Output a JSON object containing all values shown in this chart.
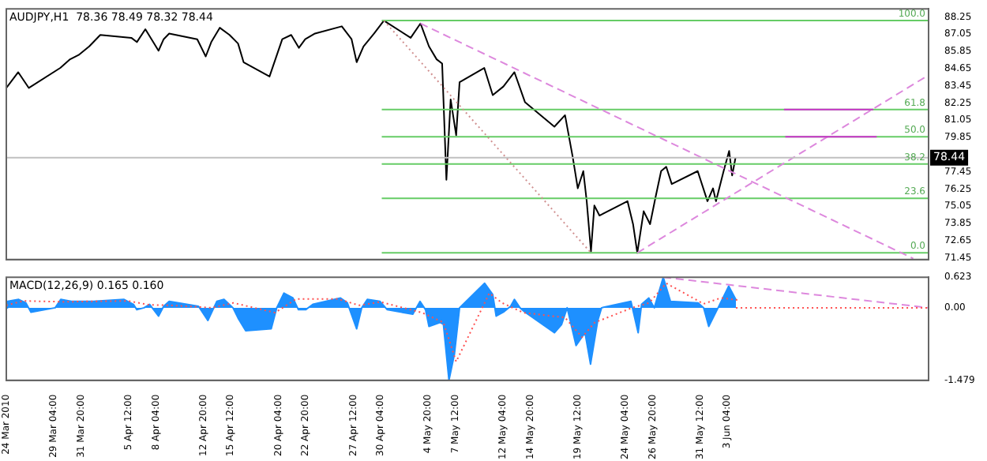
{
  "chart_data": [
    {
      "type": "line",
      "title": "AUDJPY,H1  78.36 78.49 78.32 78.44",
      "xlim": [
        "2010-03-24T12:00",
        "2010-06-22T21:00"
      ],
      "ylim": [
        71.33,
        88.82
      ],
      "tick_labels": "y",
      "marker": "none",
      "legend": false,
      "grid": false,
      "yticks": [
        88.25,
        87.05,
        85.85,
        84.65,
        83.45,
        82.25,
        81.05,
        79.85,
        77.45,
        76.25,
        75.05,
        73.85,
        72.65,
        71.45
      ],
      "series": [
        {
          "color": "#000000",
          "x": [
            "2010-03-24T12:00",
            "2010-03-25T16:00",
            "2010-03-26T17:00",
            "2010-03-29T19:00",
            "2010-03-30T18:00",
            "2010-03-31T14:00",
            "2010-04-01T15:00",
            "2010-04-02T17:00",
            "2010-04-05T18:00",
            "2010-04-06T07:00",
            "2010-04-07T03:00",
            "2010-04-08T10:00",
            "2010-04-08T22:00",
            "2010-04-09T11:00",
            "2010-04-12T05:00",
            "2010-04-13T01:00",
            "2010-04-13T14:00",
            "2010-04-14T10:00",
            "2010-04-15T09:00",
            "2010-04-16T05:00",
            "2010-04-16T18:00",
            "2010-04-19T07:00",
            "2010-04-20T13:00",
            "2010-04-21T10:00",
            "2010-04-22T04:00",
            "2010-04-22T19:00",
            "2010-04-23T18:00",
            "2010-04-26T09:00",
            "2010-04-27T08:00",
            "2010-04-27T20:00",
            "2010-04-28T12:00",
            "2010-04-29T13:00",
            "2010-04-30T12:00",
            "2010-05-03T03:00",
            "2010-05-04T02:00",
            "2010-05-04T22:00",
            "2010-05-05T16:00",
            "2010-05-06T05:00",
            "2010-05-06T15:00",
            "2010-05-07T01:00",
            "2010-05-07T14:00",
            "2010-05-07T22:00",
            "2010-05-10T08:00",
            "2010-05-11T04:00",
            "2010-05-12T05:00",
            "2010-05-13T07:00",
            "2010-05-14T08:00",
            "2010-05-17T05:00",
            "2010-05-18T06:00",
            "2010-05-19T00:00",
            "2010-05-19T12:00",
            "2010-05-20T01:00",
            "2010-05-20T09:00",
            "2010-05-20T19:00",
            "2010-05-21T03:00",
            "2010-05-21T15:00",
            "2010-05-24T09:00",
            "2010-05-24T22:00",
            "2010-05-25T08:00",
            "2010-05-25T23:00",
            "2010-05-26T14:00",
            "2010-05-27T03:00",
            "2010-05-27T16:00",
            "2010-05-28T04:00",
            "2010-05-28T17:00",
            "2010-05-31T06:00",
            "2010-06-01T05:00",
            "2010-06-01T18:00",
            "2010-06-02T01:00",
            "2010-06-02T19:00",
            "2010-06-03T08:00",
            "2010-06-03T15:00",
            "2010-06-03T23:00"
          ],
          "values": [
            83.3,
            84.4,
            83.3,
            84.7,
            85.3,
            85.6,
            86.2,
            87.0,
            86.8,
            86.5,
            87.4,
            85.9,
            86.7,
            87.1,
            86.7,
            85.5,
            86.5,
            87.5,
            87.0,
            86.4,
            85.1,
            84.1,
            86.7,
            87.0,
            86.1,
            86.7,
            87.1,
            87.6,
            86.7,
            85.1,
            86.2,
            87.1,
            88.0,
            86.8,
            87.8,
            86.2,
            85.3,
            85.0,
            76.9,
            82.5,
            80.0,
            83.7,
            84.7,
            82.8,
            83.4,
            84.4,
            82.3,
            80.6,
            81.4,
            78.5,
            76.3,
            77.5,
            75.4,
            71.9,
            75.1,
            74.4,
            75.4,
            73.8,
            71.8,
            74.7,
            73.8,
            75.7,
            77.5,
            77.8,
            76.6,
            77.5,
            75.4,
            76.3,
            75.4,
            77.5,
            78.9,
            77.2,
            78.44
          ]
        },
        {
          "color": "#66cc66",
          "x": [
            "2010-04-30T07:00",
            "2010-06-22T21:00"
          ],
          "values": [
            88.0,
            88.0
          ]
        },
        {
          "color": "#66cc66",
          "x": [
            "2010-04-30T07:00",
            "2010-06-22T21:00"
          ],
          "values": [
            81.8,
            81.8
          ]
        },
        {
          "color": "#66cc66",
          "x": [
            "2010-04-30T07:00",
            "2010-06-22T21:00"
          ],
          "values": [
            79.9,
            79.9
          ]
        },
        {
          "color": "#66cc66",
          "x": [
            "2010-04-30T07:00",
            "2010-06-22T21:00"
          ],
          "values": [
            78.0,
            78.0
          ]
        },
        {
          "color": "#66cc66",
          "x": [
            "2010-04-30T07:00",
            "2010-06-22T21:00"
          ],
          "values": [
            75.6,
            75.6
          ]
        },
        {
          "color": "#66cc66",
          "x": [
            "2010-04-30T07:00",
            "2010-06-22T21:00"
          ],
          "values": [
            71.8,
            71.8
          ]
        },
        {
          "color": "#dd88dd",
          "line_style": "dashed",
          "x": [
            "2010-05-04T02:00",
            "2010-06-21T09:00"
          ],
          "values": [
            87.8,
            71.4
          ]
        },
        {
          "color": "#d09090",
          "line_style": "dotted",
          "x": [
            "2010-04-30T12:00",
            "2010-05-20T19:00"
          ],
          "values": [
            88.0,
            71.8
          ]
        },
        {
          "color": "#dd88dd",
          "line_style": "dashed",
          "x": [
            "2010-05-25T08:00",
            "2010-06-22T21:00"
          ],
          "values": [
            71.8,
            84.2
          ]
        },
        {
          "color": "#cc33cc",
          "x": [
            "2010-06-08T17:00",
            "2010-06-17T11:00"
          ],
          "values": [
            81.8,
            81.8
          ]
        },
        {
          "color": "#cc33cc",
          "x": [
            "2010-06-08T20:00",
            "2010-06-17T19:00"
          ],
          "values": [
            79.9,
            79.9
          ]
        }
      ],
      "ref_lines": [
        {
          "axis": "y",
          "value": 78.44,
          "label": "78.44",
          "color": "#c0c0c0"
        }
      ],
      "annotations": [
        {
          "text": "100.0",
          "x": "2010-06-22T21:00",
          "y": 88.0
        },
        {
          "text": "61.8",
          "x": "2010-06-22T21:00",
          "y": 81.8
        },
        {
          "text": "50.0",
          "x": "2010-06-22T21:00",
          "y": 79.9
        },
        {
          "text": "38.2",
          "x": "2010-06-22T21:00",
          "y": 78.0
        },
        {
          "text": "23.6",
          "x": "2010-06-22T21:00",
          "y": 75.6
        },
        {
          "text": "0.0",
          "x": "2010-06-22T21:00",
          "y": 71.8
        }
      ]
    },
    {
      "type": "area",
      "title": "MACD(12,26,9) 0.165 0.160",
      "xlim": [
        "2010-03-24T12:00",
        "2010-06-22T21:00"
      ],
      "ylim": [
        -1.479,
        0.623
      ],
      "marker": "none",
      "legend": false,
      "grid": false,
      "yticks": [
        0.623,
        {
          "value": 0,
          "label": "0.00"
        },
        -1.479
      ],
      "xticks": [
        {
          "value": "2010-03-24T12:00",
          "label": "24 Mar 2010"
        },
        {
          "value": "2010-03-29T04:00",
          "label": "29 Mar 04:00"
        },
        {
          "value": "2010-03-31T20:00",
          "label": "31 Mar 20:00"
        },
        {
          "value": "2010-04-05T12:00",
          "label": "5 Apr 12:00"
        },
        {
          "value": "2010-04-08T04:00",
          "label": "8 Apr 04:00"
        },
        {
          "value": "2010-04-12T20:00",
          "label": "12 Apr 20:00"
        },
        {
          "value": "2010-04-15T12:00",
          "label": "15 Apr 12:00"
        },
        {
          "value": "2010-04-20T04:00",
          "label": "20 Apr 04:00"
        },
        {
          "value": "2010-04-22T20:00",
          "label": "22 Apr 20:00"
        },
        {
          "value": "2010-04-27T12:00",
          "label": "27 Apr 12:00"
        },
        {
          "value": "2010-04-30T04:00",
          "label": "30 Apr 04:00"
        },
        {
          "value": "2010-05-04T20:00",
          "label": "4 May 20:00"
        },
        {
          "value": "2010-05-07T12:00",
          "label": "7 May 12:00"
        },
        {
          "value": "2010-05-12T04:00",
          "label": "12 May 04:00"
        },
        {
          "value": "2010-05-14T20:00",
          "label": "14 May 20:00"
        },
        {
          "value": "2010-05-19T12:00",
          "label": "19 May 12:00"
        },
        {
          "value": "2010-05-24T04:00",
          "label": "24 May 04:00"
        },
        {
          "value": "2010-05-26T20:00",
          "label": "26 May 20:00"
        },
        {
          "value": "2010-05-31T12:00",
          "label": "31 May 12:00"
        },
        {
          "value": "2010-06-03T04:00",
          "label": "3 Jun 04:00"
        }
      ],
      "series": [
        {
          "color": "#1e90ff",
          "x": [
            "2010-03-24T12:00",
            "2010-03-24T15:00",
            "2010-03-25T17:00",
            "2010-03-26T10:00",
            "2010-03-26T22:00",
            "2010-03-29T07:00",
            "2010-03-29T20:00",
            "2010-03-30T21:00",
            "2010-03-31T22:00",
            "2010-04-02T00:00",
            "2010-04-05T01:00",
            "2010-04-05T23:00",
            "2010-04-06T07:00",
            "2010-04-07T00:00",
            "2010-04-07T13:00",
            "2010-04-08T10:00",
            "2010-04-08T22:00",
            "2010-04-09T11:00",
            "2010-04-12T08:00",
            "2010-04-13T06:00",
            "2010-04-14T03:00",
            "2010-04-14T20:00",
            "2010-04-15T17:00",
            "2010-04-16T05:00",
            "2010-04-16T23:00",
            "2010-04-19T11:00",
            "2010-04-20T00:00",
            "2010-04-20T17:00",
            "2010-04-21T14:00",
            "2010-04-22T03:00",
            "2010-04-22T20:00",
            "2010-04-23T13:00",
            "2010-04-26T06:00",
            "2010-04-26T22:00",
            "2010-04-27T20:00",
            "2010-04-28T08:00",
            "2010-04-28T21:00",
            "2010-04-30T03:00",
            "2010-04-30T20:00",
            "2010-05-03T08:00",
            "2010-05-04T01:00",
            "2010-05-04T14:00",
            "2010-05-04T22:00",
            "2010-05-06T00:00",
            "2010-05-06T08:00",
            "2010-05-06T21:00",
            "2010-05-07T10:00",
            "2010-05-07T22:00",
            "2010-05-10T09:00",
            "2010-05-11T04:00",
            "2010-05-11T12:00",
            "2010-05-12T05:00",
            "2010-05-12T22:00",
            "2010-05-13T07:00",
            "2010-05-13T20:00",
            "2010-05-14T08:00",
            "2010-05-17T05:00",
            "2010-05-17T22:00",
            "2010-05-18T11:00",
            "2010-05-19T08:00",
            "2010-05-20T05:00",
            "2010-05-20T18:00",
            "2010-05-21T11:00",
            "2010-05-21T20:00",
            "2010-05-24T17:00",
            "2010-05-25T10:00",
            "2010-05-25T18:00",
            "2010-05-26T11:00",
            "2010-05-27T00:00",
            "2010-05-27T21:00",
            "2010-05-28T14:00",
            "2010-05-31T07:00",
            "2010-05-31T20:00",
            "2010-06-01T08:00",
            "2010-06-02T06:00",
            "2010-06-03T07:00",
            "2010-06-04T00:00"
          ],
          "values": [
            0,
            0.13,
            0.17,
            0.1,
            -0.09,
            0,
            0.17,
            0.13,
            0.13,
            0.13,
            0.17,
            0.07,
            -0.04,
            0,
            0.07,
            -0.17,
            0.03,
            0.13,
            0.03,
            -0.26,
            0.13,
            0.17,
            0,
            -0.21,
            -0.47,
            -0.43,
            0,
            0.3,
            0.2,
            -0.04,
            -0.04,
            0.07,
            0.2,
            0.1,
            -0.43,
            0,
            0.17,
            0.13,
            -0.04,
            -0.13,
            0.13,
            -0.04,
            -0.38,
            -0.3,
            -0.34,
            -1.479,
            -0.94,
            0,
            0.5,
            0.27,
            -0.17,
            -0.09,
            0.03,
            0.17,
            0,
            -0.09,
            -0.51,
            -0.34,
            0,
            -0.77,
            -0.51,
            -1.15,
            -0.26,
            0,
            0.13,
            -0.51,
            0.07,
            0.2,
            0,
            0.623,
            0.13,
            0.1,
            0,
            -0.38,
            0,
            0.44,
            0.165
          ]
        },
        {
          "type": "line",
          "color": "#ff5050",
          "line_style": "dotted",
          "x": [
            "2010-03-24T12:00",
            "2010-03-26T04:00",
            "2010-03-30T06:00",
            "2010-04-01T08:00",
            "2010-04-05T10:00",
            "2010-04-07T12:00",
            "2010-04-09T14:00",
            "2010-04-13T16:00",
            "2010-04-15T18:00",
            "2010-04-19T20:00",
            "2010-04-21T22:00",
            "2010-04-26T00:00",
            "2010-04-28T02:00",
            "2010-04-30T04:00",
            "2010-05-04T06:00",
            "2010-05-06T08:00",
            "2010-05-07T14:00",
            "2010-05-10T20:00",
            "2010-05-12T02:00",
            "2010-05-14T04:00",
            "2010-05-18T06:00",
            "2010-05-19T22:00",
            "2010-05-21T04:00",
            "2010-05-24T20:00",
            "2010-05-26T12:00",
            "2010-05-28T04:00",
            "2010-05-31T20:00",
            "2010-06-02T12:00",
            "2010-06-04T04:00"
          ],
          "values": [
            0.05,
            0.14,
            0.12,
            0.13,
            0.14,
            0.06,
            0.05,
            0,
            0.1,
            -0.1,
            0.18,
            0.18,
            0.05,
            0.12,
            -0.1,
            -0.3,
            -1.1,
            0.3,
            0.1,
            -0.1,
            -0.2,
            -0.6,
            -0.3,
            0,
            0.1,
            0.5,
            0.08,
            0.2,
            0.16
          ]
        },
        {
          "type": "line",
          "color": "#dd88dd",
          "line_style": "dashed",
          "x": [
            "2010-05-27T21:00",
            "2010-06-22T21:00"
          ],
          "values": [
            0.623,
            0
          ]
        },
        {
          "type": "line",
          "color": "#ff5050",
          "line_style": "dotted",
          "x": [
            "2010-06-04T00:00",
            "2010-06-22T21:00"
          ],
          "values": [
            0,
            0
          ]
        }
      ]
    }
  ]
}
